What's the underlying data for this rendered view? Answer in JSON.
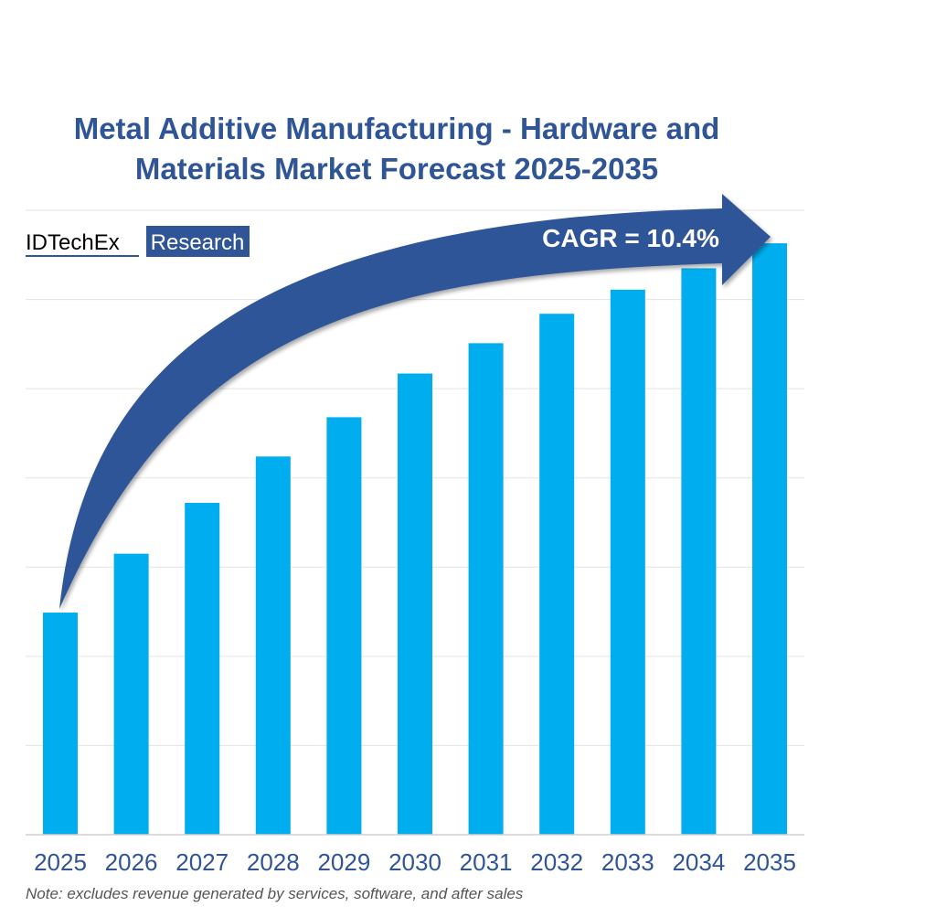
{
  "chart_data": {
    "type": "bar",
    "title": "Metal Additive Manufacturing - Hardware and Materials Market Forecast 2025-2035",
    "title_lines": [
      "Metal Additive Manufacturing - Hardware and",
      "Materials Market Forecast 2025-2035"
    ],
    "categories": [
      "2025",
      "2026",
      "2027",
      "2028",
      "2029",
      "2030",
      "2031",
      "2032",
      "2033",
      "2034",
      "2035"
    ],
    "values": [
      2.49,
      3.15,
      3.72,
      4.24,
      4.68,
      5.17,
      5.51,
      5.84,
      6.11,
      6.35,
      6.63
    ],
    "ylim": [
      0,
      7
    ],
    "y_tick_labels_shown": false,
    "grid": true,
    "annotation": "CAGR = 10.4%",
    "note": "Note: excludes revenue generated by services, software, and after sales",
    "colors": {
      "bar": "#00AEEF",
      "title": "#2F5597",
      "arrow": "#2F5597",
      "axis_text": "#2F5597",
      "grid": "#E3E3E3",
      "note": "#555555"
    }
  },
  "logo": {
    "brand": "IDTechEx",
    "tag": "Research"
  }
}
